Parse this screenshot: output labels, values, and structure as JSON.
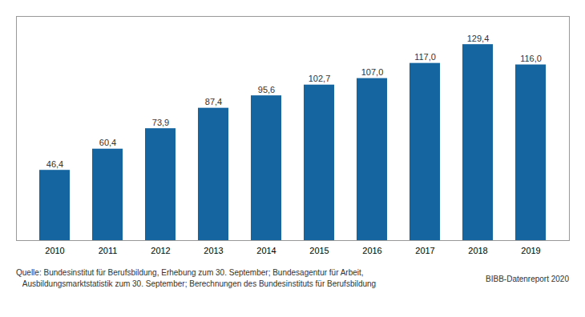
{
  "chart_data": {
    "type": "bar",
    "categories": [
      "2010",
      "2011",
      "2012",
      "2013",
      "2014",
      "2015",
      "2016",
      "2017",
      "2018",
      "2019"
    ],
    "values": [
      46.4,
      60.4,
      73.9,
      87.4,
      95.6,
      102.7,
      107.0,
      117.0,
      129.4,
      116.0
    ],
    "value_labels": [
      "46,4",
      "60,4",
      "73,9",
      "87,4",
      "95,6",
      "102,7",
      "107,0",
      "117,0",
      "129,4",
      "116,0"
    ],
    "color": "#1465a0",
    "ylim": [
      0,
      148
    ],
    "grid": false,
    "data_labels": true,
    "tick_labels": "x",
    "annotations": [
      "Quelle: Bundesinstitut für Berufsbildung, Erhebung zum 30. September; Bundesagentur für Arbeit,",
      "   Ausbildungsmarktstatistik zum 30. September; Berechnungen des Bundesinstituts für Berufsbildung",
      "BIBB-Datenreport 2020"
    ]
  }
}
